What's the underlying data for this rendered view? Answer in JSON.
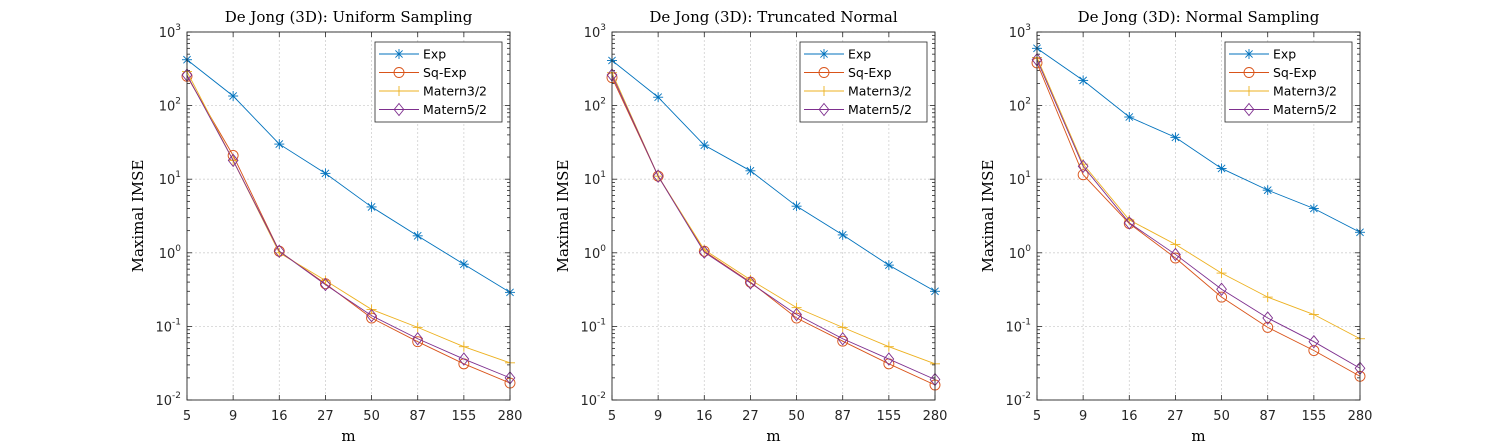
{
  "chart_data": [
    {
      "type": "line",
      "title": "De Jong (3D): Uniform Sampling",
      "xlabel": "m",
      "ylabel": "Maximal IMSE",
      "yscale": "log",
      "ylim": [
        0.01,
        1000
      ],
      "categories": [
        "5",
        "9",
        "16",
        "27",
        "50",
        "87",
        "155",
        "280"
      ],
      "yticks": [
        "10^-2",
        "10^-1",
        "10^0",
        "10^1",
        "10^2",
        "10^3"
      ],
      "grid": true,
      "legend_position": "top-right",
      "series": [
        {
          "name": "Exp",
          "color": "#0072BD",
          "marker": "asterisk",
          "values": [
            420,
            135,
            30,
            12,
            4.2,
            1.7,
            0.7,
            0.29
          ]
        },
        {
          "name": "Sq-Exp",
          "color": "#D95319",
          "marker": "circle",
          "values": [
            250,
            21,
            1.05,
            0.38,
            0.13,
            0.062,
            0.031,
            0.017
          ]
        },
        {
          "name": "Matern3/2",
          "color": "#EDB120",
          "marker": "plus",
          "values": [
            290,
            18,
            1.0,
            0.42,
            0.17,
            0.097,
            0.053,
            0.032
          ]
        },
        {
          "name": "Matern5/2",
          "color": "#7E2F8E",
          "marker": "diamond",
          "values": [
            260,
            18,
            1.05,
            0.37,
            0.14,
            0.068,
            0.036,
            0.02
          ]
        }
      ]
    },
    {
      "type": "line",
      "title": "De Jong (3D): Truncated Normal",
      "xlabel": "m",
      "ylabel": "Maximal IMSE",
      "yscale": "log",
      "ylim": [
        0.01,
        1000
      ],
      "categories": [
        "5",
        "9",
        "16",
        "27",
        "50",
        "87",
        "155",
        "280"
      ],
      "yticks": [
        "10^-2",
        "10^-1",
        "10^0",
        "10^1",
        "10^2",
        "10^3"
      ],
      "grid": true,
      "legend_position": "top-right",
      "series": [
        {
          "name": "Exp",
          "color": "#0072BD",
          "marker": "asterisk",
          "values": [
            410,
            130,
            29,
            13,
            4.3,
            1.75,
            0.68,
            0.3
          ]
        },
        {
          "name": "Sq-Exp",
          "color": "#D95319",
          "marker": "circle",
          "values": [
            240,
            11,
            1.05,
            0.4,
            0.13,
            0.063,
            0.031,
            0.016
          ]
        },
        {
          "name": "Matern3/2",
          "color": "#EDB120",
          "marker": "plus",
          "values": [
            280,
            11,
            1.1,
            0.43,
            0.18,
            0.097,
            0.053,
            0.031
          ]
        },
        {
          "name": "Matern5/2",
          "color": "#7E2F8E",
          "marker": "diamond",
          "values": [
            260,
            11,
            1.02,
            0.39,
            0.145,
            0.068,
            0.036,
            0.019
          ]
        }
      ]
    },
    {
      "type": "line",
      "title": "De Jong (3D): Normal Sampling",
      "xlabel": "m",
      "ylabel": "Maximal IMSE",
      "yscale": "log",
      "ylim": [
        0.01,
        1000
      ],
      "categories": [
        "5",
        "9",
        "16",
        "27",
        "50",
        "87",
        "155",
        "280"
      ],
      "yticks": [
        "10^-2",
        "10^-1",
        "10^0",
        "10^1",
        "10^2",
        "10^3"
      ],
      "grid": true,
      "legend_position": "top-right",
      "series": [
        {
          "name": "Exp",
          "color": "#0072BD",
          "marker": "asterisk",
          "values": [
            600,
            220,
            70,
            37,
            14,
            7.1,
            4.0,
            1.9
          ]
        },
        {
          "name": "Sq-Exp",
          "color": "#D95319",
          "marker": "circle",
          "values": [
            380,
            11.5,
            2.5,
            0.85,
            0.25,
            0.097,
            0.047,
            0.021
          ]
        },
        {
          "name": "Matern3/2",
          "color": "#EDB120",
          "marker": "plus",
          "values": [
            450,
            16,
            2.8,
            1.3,
            0.53,
            0.25,
            0.145,
            0.068
          ]
        },
        {
          "name": "Matern5/2",
          "color": "#7E2F8E",
          "marker": "diamond",
          "values": [
            420,
            15,
            2.55,
            0.95,
            0.32,
            0.13,
            0.062,
            0.027
          ]
        }
      ]
    }
  ]
}
